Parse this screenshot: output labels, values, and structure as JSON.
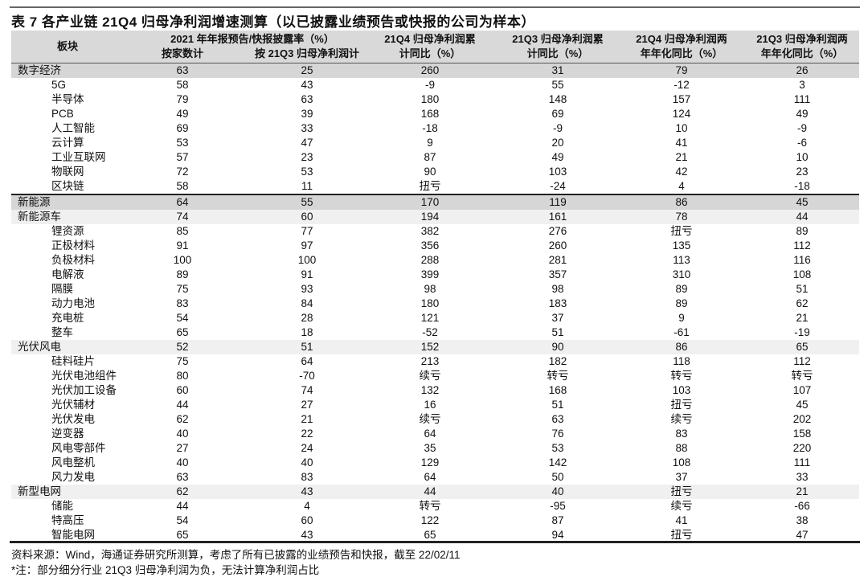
{
  "title": "表 7 各产业链 21Q4 归母净利润增速测算（以已披露业绩预告或快报的公司为样本）",
  "header": {
    "sector": "板块",
    "disclosure_group": "2021 年年报预告/快报披露率（%）",
    "by_count": "按家数计",
    "by_profit": "按 21Q3 归母净利润计",
    "q4_cum_1": "21Q4 归母净利润累",
    "q4_cum_2": "计同比（%）",
    "q3_cum_1": "21Q3 归母净利润累",
    "q3_cum_2": "计同比（%）",
    "q4_2y_1": "21Q4 归母净利润两",
    "q4_2y_2": "年年化同比（%）",
    "q3_2y_1": "21Q3 归母净利润两",
    "q3_2y_2": "年年化同比（%）"
  },
  "rows": [
    {
      "type": "grp",
      "cells": [
        "数字经济",
        "63",
        "25",
        "260",
        "31",
        "79",
        "26"
      ]
    },
    {
      "type": "sub",
      "cells": [
        "5G",
        "58",
        "43",
        "-9",
        "55",
        "-12",
        "3"
      ]
    },
    {
      "type": "sub",
      "cells": [
        "半导体",
        "79",
        "63",
        "180",
        "148",
        "157",
        "111"
      ]
    },
    {
      "type": "sub",
      "cells": [
        "PCB",
        "49",
        "39",
        "168",
        "69",
        "124",
        "49"
      ]
    },
    {
      "type": "sub",
      "cells": [
        "人工智能",
        "69",
        "33",
        "-18",
        "-9",
        "10",
        "-9"
      ]
    },
    {
      "type": "sub",
      "cells": [
        "云计算",
        "53",
        "47",
        "9",
        "20",
        "41",
        "-6"
      ]
    },
    {
      "type": "sub",
      "cells": [
        "工业互联网",
        "57",
        "23",
        "87",
        "49",
        "21",
        "10"
      ]
    },
    {
      "type": "sub",
      "cells": [
        "物联网",
        "72",
        "53",
        "90",
        "103",
        "42",
        "23"
      ]
    },
    {
      "type": "sub",
      "cells": [
        "区块链",
        "58",
        "11",
        "扭亏",
        "-24",
        "4",
        "-18"
      ]
    },
    {
      "type": "grp topb",
      "cells": [
        "新能源",
        "64",
        "55",
        "170",
        "119",
        "86",
        "45"
      ]
    },
    {
      "type": "sg",
      "cells": [
        "新能源车",
        "74",
        "60",
        "194",
        "161",
        "78",
        "44"
      ]
    },
    {
      "type": "sub",
      "cells": [
        "锂资源",
        "85",
        "77",
        "382",
        "276",
        "扭亏",
        "89"
      ]
    },
    {
      "type": "sub",
      "cells": [
        "正极材料",
        "91",
        "97",
        "356",
        "260",
        "135",
        "112"
      ]
    },
    {
      "type": "sub",
      "cells": [
        "负极材料",
        "100",
        "100",
        "288",
        "281",
        "113",
        "116"
      ]
    },
    {
      "type": "sub",
      "cells": [
        "电解液",
        "89",
        "91",
        "399",
        "357",
        "310",
        "108"
      ]
    },
    {
      "type": "sub",
      "cells": [
        "隔膜",
        "75",
        "93",
        "98",
        "98",
        "89",
        "51"
      ]
    },
    {
      "type": "sub",
      "cells": [
        "动力电池",
        "83",
        "84",
        "180",
        "183",
        "89",
        "62"
      ]
    },
    {
      "type": "sub",
      "cells": [
        "充电桩",
        "54",
        "28",
        "121",
        "37",
        "9",
        "21"
      ]
    },
    {
      "type": "sub",
      "cells": [
        "整车",
        "65",
        "18",
        "-52",
        "51",
        "-61",
        "-19"
      ]
    },
    {
      "type": "sg",
      "cells": [
        "光伏风电",
        "52",
        "51",
        "152",
        "90",
        "86",
        "65"
      ]
    },
    {
      "type": "sub",
      "cells": [
        "硅料硅片",
        "75",
        "64",
        "213",
        "182",
        "118",
        "112"
      ]
    },
    {
      "type": "sub",
      "cells": [
        "光伏电池组件",
        "80",
        "-70",
        "续亏",
        "转亏",
        "转亏",
        "转亏"
      ]
    },
    {
      "type": "sub",
      "cells": [
        "光伏加工设备",
        "60",
        "74",
        "132",
        "168",
        "103",
        "107"
      ]
    },
    {
      "type": "sub",
      "cells": [
        "光伏辅材",
        "44",
        "27",
        "16",
        "51",
        "扭亏",
        "45"
      ]
    },
    {
      "type": "sub",
      "cells": [
        "光伏发电",
        "62",
        "21",
        "续亏",
        "63",
        "续亏",
        "202"
      ]
    },
    {
      "type": "sub",
      "cells": [
        "逆变器",
        "40",
        "22",
        "64",
        "76",
        "83",
        "158"
      ]
    },
    {
      "type": "sub",
      "cells": [
        "风电零部件",
        "27",
        "24",
        "35",
        "53",
        "88",
        "220"
      ]
    },
    {
      "type": "sub",
      "cells": [
        "风电整机",
        "40",
        "40",
        "129",
        "142",
        "108",
        "111"
      ]
    },
    {
      "type": "sub",
      "cells": [
        "风力发电",
        "63",
        "83",
        "64",
        "50",
        "37",
        "33"
      ]
    },
    {
      "type": "sg",
      "cells": [
        "新型电网",
        "62",
        "43",
        "44",
        "40",
        "扭亏",
        "21"
      ]
    },
    {
      "type": "sub",
      "cells": [
        "储能",
        "44",
        "4",
        "转亏",
        "-95",
        "续亏",
        "-66"
      ]
    },
    {
      "type": "sub",
      "cells": [
        "特高压",
        "54",
        "60",
        "122",
        "87",
        "41",
        "38"
      ]
    },
    {
      "type": "sub",
      "cells": [
        "智能电网",
        "65",
        "43",
        "65",
        "94",
        "扭亏",
        "47"
      ]
    }
  ],
  "source": "资料来源：Wind，海通证券研究所测算，考虑了所有已披露的业绩预告和快报，截至 22/02/11",
  "footnote": "*注：部分细分行业 21Q3 归母净利润为负，无法计算净利润占比"
}
